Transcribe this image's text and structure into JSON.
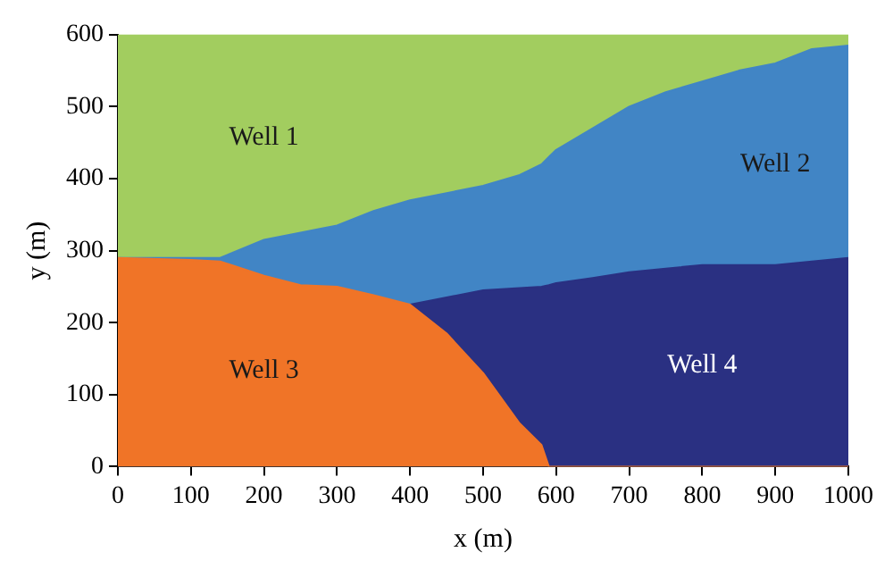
{
  "chart_data": {
    "type": "area",
    "xlabel": "x (m)",
    "ylabel": "y (m)",
    "x": [
      0,
      100,
      140,
      200,
      250,
      300,
      350,
      400,
      450,
      500,
      550,
      580,
      590,
      600,
      650,
      700,
      750,
      800,
      850,
      900,
      950,
      1000
    ],
    "series": [
      {
        "name": "Well 3",
        "color": "#f07427",
        "values": [
          290,
          287,
          285,
          265,
          252,
          250,
          238,
          225,
          185,
          130,
          60,
          30,
          0,
          0,
          0,
          0,
          0,
          0,
          0,
          0,
          0,
          0
        ]
      },
      {
        "name": "Well 4",
        "color": "#2a3082",
        "x": [
          400,
          450,
          500,
          550,
          580,
          590,
          600,
          650,
          700,
          750,
          800,
          850,
          900,
          950,
          1000
        ],
        "values": [
          225,
          235,
          245,
          248,
          250,
          252,
          255,
          262,
          270,
          275,
          280,
          280,
          280,
          285,
          290
        ]
      },
      {
        "name": "Well 2",
        "color": "#4185c5",
        "values": [
          290,
          290,
          290,
          315,
          325,
          335,
          355,
          370,
          380,
          390,
          405,
          420,
          430,
          440,
          470,
          500,
          520,
          535,
          550,
          560,
          580,
          585
        ]
      },
      {
        "name": "Well 1",
        "color": "#a2cd5f",
        "values": [
          600,
          600,
          600,
          600,
          600,
          600,
          600,
          600,
          600,
          600,
          600,
          600,
          600,
          600,
          600,
          600,
          600,
          600,
          600,
          600,
          600,
          600
        ]
      }
    ],
    "xlim": [
      0,
      1000
    ],
    "xticks": [
      0,
      100,
      200,
      300,
      400,
      500,
      600,
      700,
      800,
      900,
      1000
    ],
    "ylim": [
      0,
      600
    ],
    "yticks": [
      0,
      100,
      200,
      300,
      400,
      500,
      600
    ],
    "grid": false,
    "legend": false
  }
}
